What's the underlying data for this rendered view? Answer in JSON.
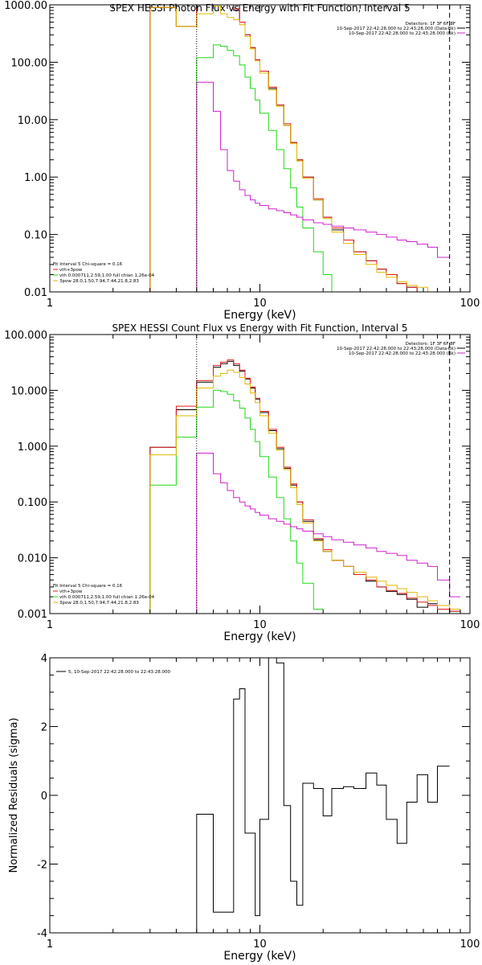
{
  "colors": {
    "black": "#000000",
    "red": "#e41a1c",
    "green": "#22d81a",
    "yellow": "#e0b800",
    "magenta": "#d020d0"
  },
  "chart_data": [
    {
      "type": "line",
      "title": "SPEX HESSI Photon Flux vs Energy with Fit Function, Interval 5",
      "xlabel": "Energy (keV)",
      "ylabel": "",
      "xscale": "log",
      "yscale": "log",
      "xlim": [
        1,
        100
      ],
      "ylim": [
        0.01,
        1000
      ],
      "xticks": [
        "1",
        "10",
        "100"
      ],
      "yticks": [
        "0.01",
        "0.10",
        "1.00",
        "10.00",
        "100.00",
        "1000.00"
      ],
      "edges": [
        3,
        4,
        5,
        6,
        6.5,
        7,
        7.5,
        8,
        8.5,
        9,
        9.5,
        10,
        11,
        12,
        13,
        14,
        15,
        16,
        18,
        20,
        22,
        25,
        28,
        32,
        36,
        40,
        45,
        50,
        56,
        63,
        70,
        80
      ],
      "vlines": [
        {
          "x": 5,
          "style": "dotted"
        },
        {
          "x": 80,
          "style": "dashed"
        }
      ],
      "legend_right": [
        "Detectors: 1F 3F 6F 8F",
        "10-Sep-2017 22:42:28.000 to 22:43:28.000 (Data-Bk)",
        "10-Sep-2017 22:42:28.000 to 22:43:28.000 (Bk)"
      ],
      "legend_left": [
        "Fit Interval 5   Chi-square = 0.16",
        "vth+3pow",
        "vth 0.000711,2.59,1.00   full chian 1.26e-04",
        "3pow 28.0,1.50,7.94,7.44,21.8,2.83"
      ],
      "series": [
        {
          "name": "Data-Bk",
          "color": "#000000",
          "values": [
            900,
            420,
            1000,
            1000,
            1000,
            1000,
            800,
            500,
            300,
            180,
            110,
            70,
            35,
            18,
            8.0,
            4.0,
            2.0,
            1.0,
            0.4,
            0.2,
            0.12,
            0.08,
            0.05,
            0.035,
            0.025,
            0.02,
            0.014,
            0.012,
            0.01,
            0.009,
            0.008
          ]
        },
        {
          "name": "vth+3pow",
          "color": "#e41a1c",
          "values": [
            900,
            420,
            1000,
            1000,
            1000,
            1000,
            850,
            500,
            300,
            180,
            110,
            70,
            37,
            18,
            8.5,
            4.0,
            2.0,
            1.0,
            0.42,
            0.2,
            0.13,
            0.08,
            0.05,
            0.035,
            0.025,
            0.02,
            0.014,
            0.012,
            0.01,
            0.009,
            0.008
          ]
        },
        {
          "name": "vth",
          "color": "#22d81a",
          "values": [
            null,
            null,
            120,
            200,
            190,
            160,
            130,
            90,
            55,
            35,
            22,
            13,
            6.5,
            3.0,
            1.4,
            0.65,
            0.3,
            0.13,
            0.05,
            0.02,
            0.008,
            null,
            null,
            null,
            null,
            null,
            null,
            null,
            null,
            null,
            null
          ]
        },
        {
          "name": "3pow",
          "color": "#e0b800",
          "values": [
            900,
            420,
            700,
            950,
            700,
            600,
            550,
            450,
            280,
            170,
            105,
            65,
            33,
            17,
            8.0,
            3.8,
            1.9,
            0.95,
            0.4,
            0.19,
            0.11,
            0.07,
            0.045,
            0.03,
            0.022,
            0.018,
            0.015,
            0.013,
            0.012,
            0.01,
            0.009
          ]
        },
        {
          "name": "Bk",
          "color": "#d020d0",
          "values": [
            null,
            null,
            45,
            14,
            3.0,
            1.3,
            0.85,
            0.6,
            0.48,
            0.4,
            0.35,
            0.32,
            0.28,
            0.26,
            0.24,
            0.22,
            0.2,
            0.18,
            0.16,
            0.15,
            0.14,
            0.13,
            0.12,
            0.11,
            0.1,
            0.09,
            0.08,
            0.075,
            0.068,
            0.06,
            0.04
          ]
        }
      ]
    },
    {
      "type": "line",
      "title": "SPEX HESSI Count Flux vs Energy with Fit Function, Interval 5",
      "xlabel": "Energy (keV)",
      "ylabel": "",
      "xscale": "log",
      "yscale": "log",
      "xlim": [
        1,
        100
      ],
      "ylim": [
        0.001,
        100
      ],
      "xticks": [
        "1",
        "10",
        "100"
      ],
      "yticks": [
        "0.001",
        "0.010",
        "0.100",
        "1.000",
        "10.000",
        "100.000"
      ],
      "edges": [
        3,
        4,
        5,
        6,
        6.5,
        7,
        7.5,
        8,
        8.5,
        9,
        9.5,
        10,
        11,
        12,
        13,
        14,
        15,
        16,
        18,
        20,
        22,
        25,
        28,
        32,
        36,
        40,
        45,
        50,
        56,
        63,
        70,
        80,
        90
      ],
      "vlines": [
        {
          "x": 5,
          "style": "dotted"
        },
        {
          "x": 80,
          "style": "dashed"
        }
      ],
      "legend_right": [
        "Detectors: 1F 3F 6F 8F",
        "10-Sep-2017 22:42:28.000 to 22:43:28.000 (Data-Bk)",
        "10-Sep-2017 22:42:28.000 to 22:43:28.000 (Bk)"
      ],
      "legend_left": [
        "Fit Interval 5   Chi-square = 0.16",
        "vth+3pow",
        "vth 0.000711,2.59,1.00   full chian 1.26e-04",
        "3pow 28.0,1.50,7.94,7.44,21.8,2.83"
      ],
      "series": [
        {
          "name": "Data-Bk",
          "color": "#000000",
          "values": [
            0.95,
            4.5,
            14.0,
            26.0,
            30.0,
            33.0,
            28.0,
            22.0,
            16.0,
            11.0,
            7.0,
            4.0,
            1.9,
            0.9,
            0.4,
            0.2,
            0.1,
            0.045,
            0.021,
            0.013,
            0.009,
            0.007,
            0.005,
            0.0038,
            0.003,
            0.0025,
            0.0022,
            0.0018,
            0.0013,
            0.0015,
            0.0012,
            0.0011
          ]
        },
        {
          "name": "vth+3pow",
          "color": "#e41a1c",
          "values": [
            0.95,
            5.2,
            15.0,
            28.0,
            32.0,
            35.0,
            30.0,
            23.0,
            16.5,
            11.5,
            7.2,
            4.2,
            2.0,
            0.95,
            0.42,
            0.21,
            0.1,
            0.048,
            0.022,
            0.014,
            0.009,
            0.007,
            0.005,
            0.004,
            0.003,
            0.0026,
            0.0023,
            0.0019,
            0.0016,
            0.0014,
            0.0012,
            0.0011
          ]
        },
        {
          "name": "vth",
          "color": "#22d81a",
          "values": [
            0.2,
            1.45,
            5.0,
            10.0,
            9.5,
            8.5,
            6.5,
            4.8,
            3.2,
            2.0,
            1.2,
            0.65,
            0.28,
            0.12,
            0.05,
            0.02,
            0.008,
            0.0035,
            0.0012,
            null,
            null,
            null,
            null,
            null,
            null,
            null,
            null,
            null,
            null,
            null,
            null,
            null
          ]
        },
        {
          "name": "3pow",
          "color": "#e0b800",
          "values": [
            0.7,
            3.5,
            11.0,
            18.0,
            20.0,
            23.0,
            21.0,
            17.0,
            13.0,
            9.0,
            6.0,
            3.5,
            1.7,
            0.85,
            0.38,
            0.18,
            0.09,
            0.042,
            0.02,
            0.013,
            0.009,
            0.007,
            0.0055,
            0.0045,
            0.0038,
            0.0032,
            0.0028,
            0.0024,
            0.002,
            0.0017,
            0.0014,
            0.0012
          ]
        },
        {
          "name": "Bk",
          "color": "#d020d0",
          "values": [
            null,
            null,
            0.75,
            0.32,
            0.22,
            0.16,
            0.12,
            0.1,
            0.085,
            0.075,
            0.065,
            0.058,
            0.05,
            0.045,
            0.04,
            0.036,
            0.033,
            0.03,
            0.027,
            0.024,
            0.021,
            0.019,
            0.017,
            0.015,
            0.013,
            0.012,
            0.011,
            0.009,
            0.008,
            0.007,
            0.004,
            0.002
          ]
        }
      ]
    },
    {
      "type": "line",
      "title": "",
      "xlabel": "Energy (keV)",
      "ylabel": "Normalized Residuals (sigma)",
      "xscale": "log",
      "yscale": "linear",
      "xlim": [
        1,
        100
      ],
      "ylim": [
        -4,
        4
      ],
      "xticks": [
        "1",
        "10",
        "100"
      ],
      "yticks": [
        "-4",
        "-2",
        "0",
        "2",
        "4"
      ],
      "legend": [
        "5, 10-Sep-2017 22:42:28.000 to 22:43:28.000"
      ],
      "edges": [
        5,
        6,
        7,
        7.5,
        8,
        8.5,
        9,
        9.5,
        10,
        11,
        12,
        13,
        14,
        15,
        16,
        18,
        20,
        22,
        25,
        28,
        32,
        36,
        40,
        45,
        50,
        56,
        63,
        70,
        80
      ],
      "series": [
        {
          "name": "",
          "color": "#000000",
          "values": [
            -0.55,
            -3.4,
            -3.4,
            2.8,
            3.1,
            -1.1,
            -1.1,
            -3.5,
            -0.7,
            4.0,
            3.85,
            -0.3,
            -2.5,
            -3.2,
            0.35,
            0.2,
            -0.6,
            0.2,
            0.25,
            0.2,
            0.65,
            0.3,
            -0.7,
            -1.4,
            -0.2,
            0.6,
            -0.2,
            0.85
          ]
        }
      ]
    }
  ]
}
